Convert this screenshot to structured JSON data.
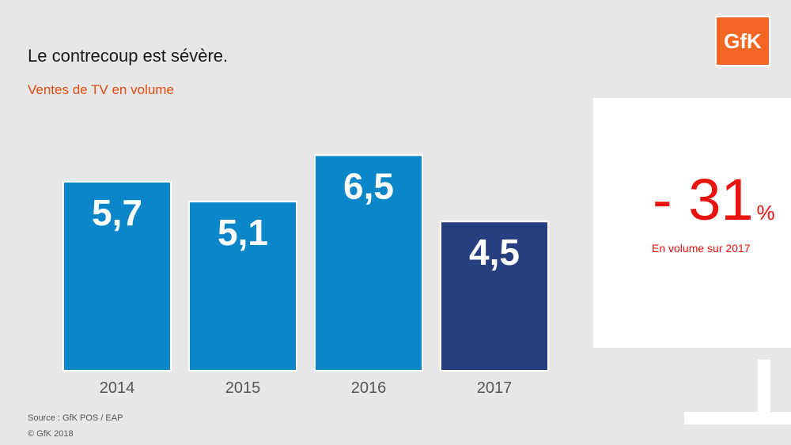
{
  "title": "Le contrecoup est sévère.",
  "subtitle": "Ventes de TV en volume",
  "logo_text": "GfK",
  "callout": {
    "value": "- 31",
    "unit": "%",
    "label": "En volume sur 2017"
  },
  "footer": {
    "source": "Source : GfK POS / EAP",
    "copyright": "© GfK 2018"
  },
  "colors": {
    "background": "#e7e7e7",
    "bar_primary": "#0a86c9",
    "bar_highlight": "#263f80",
    "accent_red": "#e8130f",
    "subtitle_orange": "#e24b12",
    "logo_orange": "#f26522",
    "axis_label": "#555555"
  },
  "chart_data": {
    "type": "bar",
    "categories": [
      "2014",
      "2015",
      "2016",
      "2017"
    ],
    "values": [
      5.7,
      5.1,
      6.5,
      4.5
    ],
    "value_labels": [
      "5,7",
      "5,1",
      "6,5",
      "4,5"
    ],
    "highlight_index": 3,
    "ylim": [
      0,
      7.7
    ],
    "grid": false
  }
}
